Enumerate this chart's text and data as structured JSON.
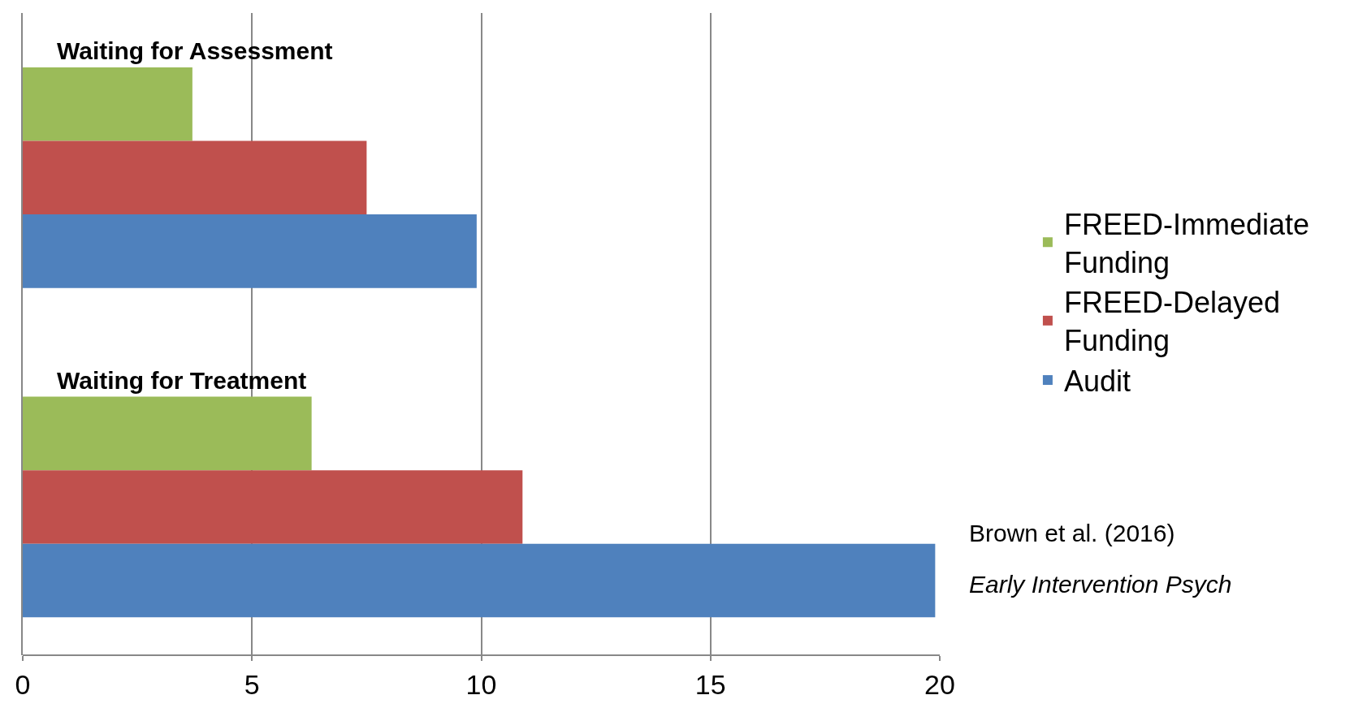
{
  "chart_data": {
    "type": "bar",
    "orientation": "horizontal",
    "categories": [
      "Waiting for Assessment",
      "Waiting for Treatment"
    ],
    "series": [
      {
        "name": "FREED-Immediate Funding",
        "color": "#9bbb59",
        "values": [
          3.7,
          6.3
        ]
      },
      {
        "name": "FREED-Delayed Funding",
        "color": "#c0504d",
        "values": [
          7.5,
          10.9
        ]
      },
      {
        "name": "Audit",
        "color": "#4f81bd",
        "values": [
          9.9,
          19.9
        ]
      }
    ],
    "xlim": [
      0,
      20
    ],
    "xticks": [
      0,
      5,
      10,
      15,
      20
    ],
    "grid": "x",
    "legend": "right",
    "annotations": [
      "Brown et al. (2016)",
      "Early Intervention Psych"
    ]
  }
}
